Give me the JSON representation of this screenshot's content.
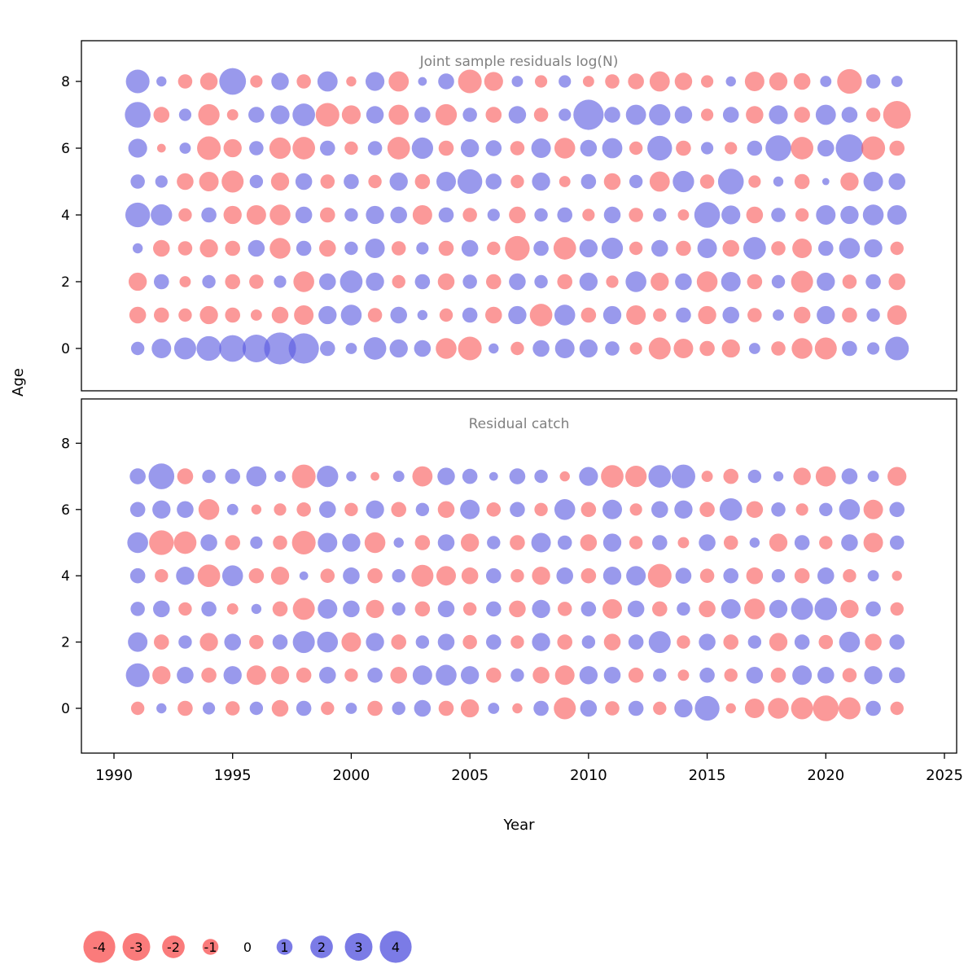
{
  "page": {
    "background": "#ffffff"
  },
  "colors": {
    "negative": "#F95A5A",
    "positive": "#5A5AE0",
    "bubble_opacity": 0.62,
    "panel_border": "#000000",
    "title_gray": "#808080",
    "tick_text": "#000000"
  },
  "axes": {
    "x_label": "Year",
    "y_label": "Age",
    "x_ticks": [
      1990,
      1995,
      2000,
      2005,
      2010,
      2015,
      2020,
      2025
    ],
    "y_ticks": [
      0,
      2,
      4,
      6,
      8
    ],
    "x_range": [
      1989,
      2026
    ]
  },
  "legend": {
    "values": [
      -4,
      -3,
      -2,
      -1,
      0,
      1,
      2,
      3,
      4
    ]
  },
  "chart_data": [
    {
      "type": "bubble",
      "title": "Joint sample residuals log(N)",
      "xlabel": "Year",
      "ylabel": "Age",
      "x": [
        1991,
        1992,
        1993,
        1994,
        1995,
        1996,
        1997,
        1998,
        1999,
        2000,
        2001,
        2002,
        2003,
        2004,
        2005,
        2006,
        2007,
        2008,
        2009,
        2010,
        2011,
        2012,
        2013,
        2014,
        2015,
        2016,
        2017,
        2018,
        2019,
        2020,
        2021,
        2022,
        2023
      ],
      "value_meaning": "signed residual; negative=red bubble, positive=blue bubble, size=|value|",
      "series": [
        {
          "name": "age-0",
          "age": 0,
          "values": [
            0.7,
            1.5,
            1.9,
            2.4,
            2.8,
            3.0,
            4.0,
            3.6,
            0.9,
            0.5,
            2.0,
            1.3,
            1.1,
            -1.7,
            -2.2,
            0.4,
            -0.7,
            1.1,
            1.5,
            1.3,
            0.8,
            -0.6,
            -1.9,
            -1.5,
            -0.9,
            -1.3,
            0.5,
            -0.8,
            -1.7,
            -1.9,
            0.9,
            0.6,
            2.2
          ]
        },
        {
          "name": "age-1",
          "age": 1,
          "values": [
            -1.1,
            -0.9,
            -0.7,
            -1.3,
            -0.9,
            -0.5,
            -1.1,
            -1.5,
            1.3,
            1.7,
            -0.8,
            1.1,
            0.4,
            -0.7,
            0.9,
            -1.1,
            1.3,
            -2.0,
            1.7,
            -0.9,
            1.3,
            -1.5,
            -0.7,
            0.9,
            -1.3,
            1.1,
            -0.8,
            0.5,
            -1.1,
            1.3,
            -0.9,
            0.7,
            -1.5
          ]
        },
        {
          "name": "age-2",
          "age": 2,
          "values": [
            -1.3,
            0.9,
            -0.5,
            0.7,
            -0.9,
            -0.8,
            0.6,
            -1.7,
            1.1,
            2.0,
            1.3,
            -0.7,
            0.9,
            -1.1,
            0.8,
            -0.9,
            1.1,
            0.7,
            -0.9,
            1.3,
            -0.6,
            1.7,
            -1.3,
            1.1,
            -1.7,
            1.5,
            -0.9,
            0.7,
            -1.9,
            1.3,
            -0.8,
            0.9,
            -1.1
          ]
        },
        {
          "name": "age-3",
          "age": 3,
          "values": [
            0.4,
            -1.1,
            -0.8,
            -1.3,
            -0.9,
            1.1,
            -1.7,
            0.9,
            -1.1,
            0.7,
            1.5,
            -0.8,
            0.6,
            -0.9,
            1.1,
            -0.7,
            -2.4,
            0.9,
            -2.0,
            1.3,
            1.8,
            -0.7,
            1.1,
            -0.9,
            1.5,
            -1.1,
            2.0,
            -0.8,
            -1.5,
            0.9,
            1.7,
            1.3,
            -0.7
          ]
        },
        {
          "name": "age-4",
          "age": 4,
          "values": [
            2.4,
            1.8,
            -0.7,
            0.9,
            -1.3,
            -1.5,
            -1.7,
            1.1,
            -0.9,
            0.7,
            1.3,
            1.1,
            -1.5,
            0.9,
            -0.8,
            0.6,
            -1.1,
            0.7,
            0.9,
            -0.6,
            1.1,
            -0.8,
            0.7,
            -0.5,
            2.6,
            1.4,
            -1.1,
            0.8,
            -0.7,
            1.5,
            1.3,
            1.7,
            1.5
          ]
        },
        {
          "name": "age-5",
          "age": 5,
          "values": [
            0.8,
            0.6,
            -1.1,
            -1.5,
            -1.9,
            0.7,
            -1.3,
            1.1,
            -0.8,
            0.9,
            -0.7,
            1.3,
            -0.9,
            1.5,
            2.4,
            1.0,
            -0.7,
            1.3,
            -0.5,
            0.9,
            -1.1,
            0.7,
            -1.6,
            1.8,
            -0.8,
            2.6,
            -0.6,
            0.4,
            -0.9,
            0.2,
            -1.3,
            1.5,
            1.1
          ]
        },
        {
          "name": "age-6",
          "age": 6,
          "values": [
            1.4,
            -0.3,
            0.5,
            -2.2,
            -1.3,
            0.8,
            -1.8,
            -2.0,
            0.9,
            -0.7,
            0.8,
            -2.0,
            1.8,
            -0.9,
            1.3,
            1.0,
            -0.8,
            1.5,
            -1.7,
            1.1,
            1.6,
            -0.7,
            2.4,
            -0.9,
            0.6,
            -0.6,
            0.9,
            2.6,
            -2.0,
            1.1,
            3.0,
            -2.2,
            -0.9
          ]
        },
        {
          "name": "age-7",
          "age": 7,
          "values": [
            2.6,
            -1.0,
            0.6,
            -1.8,
            -0.5,
            1.0,
            1.4,
            2.0,
            -2.2,
            -1.4,
            1.2,
            -1.6,
            1.0,
            -1.8,
            0.8,
            -1.0,
            1.2,
            -0.8,
            0.6,
            3.6,
            1.0,
            1.6,
            1.8,
            1.2,
            -0.6,
            1.0,
            -1.2,
            1.4,
            -1.0,
            1.6,
            1.0,
            -0.8,
            -3.0
          ]
        },
        {
          "name": "age-8",
          "age": 8,
          "values": [
            2.2,
            0.4,
            -0.8,
            -1.2,
            2.8,
            -0.6,
            1.2,
            -0.8,
            1.6,
            -0.4,
            1.4,
            -1.6,
            0.3,
            1.0,
            -2.2,
            -1.4,
            0.5,
            -0.6,
            0.6,
            -0.5,
            -0.8,
            -1.0,
            -1.6,
            -1.2,
            -0.6,
            0.4,
            -1.5,
            -1.3,
            -1.1,
            0.5,
            -2.4,
            0.8,
            0.5
          ]
        }
      ]
    },
    {
      "type": "bubble",
      "title": "Residual catch",
      "xlabel": "Year",
      "ylabel": "Age",
      "x": [
        1991,
        1992,
        1993,
        1994,
        1995,
        1996,
        1997,
        1998,
        1999,
        2000,
        2001,
        2002,
        2003,
        2004,
        2005,
        2006,
        2007,
        2008,
        2009,
        2010,
        2011,
        2012,
        2013,
        2014,
        2015,
        2016,
        2017,
        2018,
        2019,
        2020,
        2021,
        2022,
        2023
      ],
      "value_meaning": "signed residual; negative=red bubble, positive=blue bubble, size=|value|",
      "series": [
        {
          "name": "age-0",
          "age": 0,
          "values": [
            -0.7,
            0.4,
            -0.9,
            0.6,
            -0.8,
            0.7,
            -1.1,
            0.9,
            -0.7,
            0.5,
            -0.9,
            0.7,
            1.1,
            -0.9,
            -1.3,
            0.5,
            -0.4,
            0.9,
            -1.9,
            1.1,
            -0.8,
            0.9,
            -0.7,
            1.3,
            2.4,
            -0.4,
            -1.5,
            -1.7,
            -1.9,
            -2.6,
            -1.9,
            0.9,
            -0.7
          ]
        },
        {
          "name": "age-1",
          "age": 1,
          "values": [
            2.2,
            -1.3,
            1.1,
            -0.9,
            1.3,
            -1.5,
            -1.3,
            -0.9,
            1.1,
            -0.7,
            0.9,
            -1.1,
            1.5,
            1.7,
            1.3,
            -0.9,
            0.7,
            -1.1,
            -1.5,
            1.3,
            1.1,
            -0.9,
            0.7,
            -0.5,
            0.9,
            -0.7,
            1.1,
            -0.9,
            1.5,
            1.1,
            -0.8,
            1.3,
            1.0
          ]
        },
        {
          "name": "age-2",
          "age": 2,
          "values": [
            1.5,
            -0.9,
            0.7,
            -1.3,
            1.1,
            -0.8,
            0.9,
            1.9,
            1.7,
            -1.5,
            1.3,
            -0.9,
            0.7,
            1.1,
            -0.8,
            0.9,
            -0.7,
            1.3,
            -0.9,
            0.7,
            -1.1,
            0.9,
            1.9,
            -0.7,
            1.1,
            -0.9,
            0.7,
            -1.3,
            0.9,
            -0.8,
            1.7,
            -1.1,
            0.9
          ]
        },
        {
          "name": "age-3",
          "age": 3,
          "values": [
            0.8,
            1.1,
            -0.7,
            0.9,
            -0.5,
            0.4,
            -0.9,
            -1.9,
            1.5,
            1.1,
            -1.3,
            0.7,
            -0.9,
            1.1,
            -0.7,
            0.9,
            -1.1,
            1.3,
            -0.8,
            0.9,
            -1.5,
            1.1,
            -0.9,
            0.7,
            -1.1,
            1.5,
            -1.7,
            1.3,
            1.9,
            2.0,
            -1.3,
            0.9,
            -0.7
          ]
        },
        {
          "name": "age-4",
          "age": 4,
          "values": [
            0.9,
            -0.7,
            1.3,
            -2.0,
            1.7,
            -0.9,
            -1.3,
            0.3,
            -0.8,
            1.1,
            -0.9,
            0.7,
            -1.9,
            -1.5,
            -1.1,
            0.9,
            -0.7,
            -1.3,
            1.1,
            -0.9,
            1.3,
            1.5,
            -2.2,
            1.0,
            -0.8,
            0.9,
            -1.1,
            0.7,
            -0.9,
            1.1,
            -0.7,
            0.5,
            -0.4
          ]
        },
        {
          "name": "age-5",
          "age": 5,
          "values": [
            1.7,
            -2.4,
            -2.0,
            1.1,
            -0.9,
            0.6,
            -0.8,
            -2.2,
            1.5,
            1.3,
            -1.7,
            0.4,
            -0.9,
            1.1,
            -1.3,
            0.7,
            -0.9,
            1.5,
            0.8,
            -1.1,
            1.3,
            -0.7,
            0.9,
            -0.5,
            1.1,
            -0.8,
            0.4,
            -1.3,
            0.9,
            -0.7,
            1.1,
            -1.5,
            0.8
          ]
        },
        {
          "name": "age-6",
          "age": 6,
          "values": [
            0.9,
            1.3,
            1.1,
            -1.7,
            0.5,
            -0.4,
            -0.6,
            -0.8,
            1.1,
            -0.7,
            1.3,
            -0.9,
            0.7,
            -1.1,
            1.5,
            -0.8,
            0.9,
            -0.7,
            1.7,
            -0.9,
            1.5,
            -0.6,
            1.1,
            1.3,
            -0.9,
            2.0,
            -1.1,
            0.8,
            -0.6,
            0.7,
            1.7,
            -1.5,
            0.9
          ]
        },
        {
          "name": "age-7",
          "age": 7,
          "values": [
            1.0,
            2.6,
            -1.0,
            0.7,
            0.9,
            1.6,
            0.5,
            -2.2,
            1.8,
            0.4,
            -0.3,
            0.5,
            -1.6,
            1.2,
            0.9,
            0.3,
            1.0,
            0.7,
            -0.4,
            1.4,
            -2.0,
            -1.8,
            2.0,
            2.2,
            -0.5,
            -0.9,
            0.7,
            0.4,
            -1.2,
            -1.6,
            1.0,
            0.5,
            -1.4
          ]
        }
      ]
    }
  ]
}
